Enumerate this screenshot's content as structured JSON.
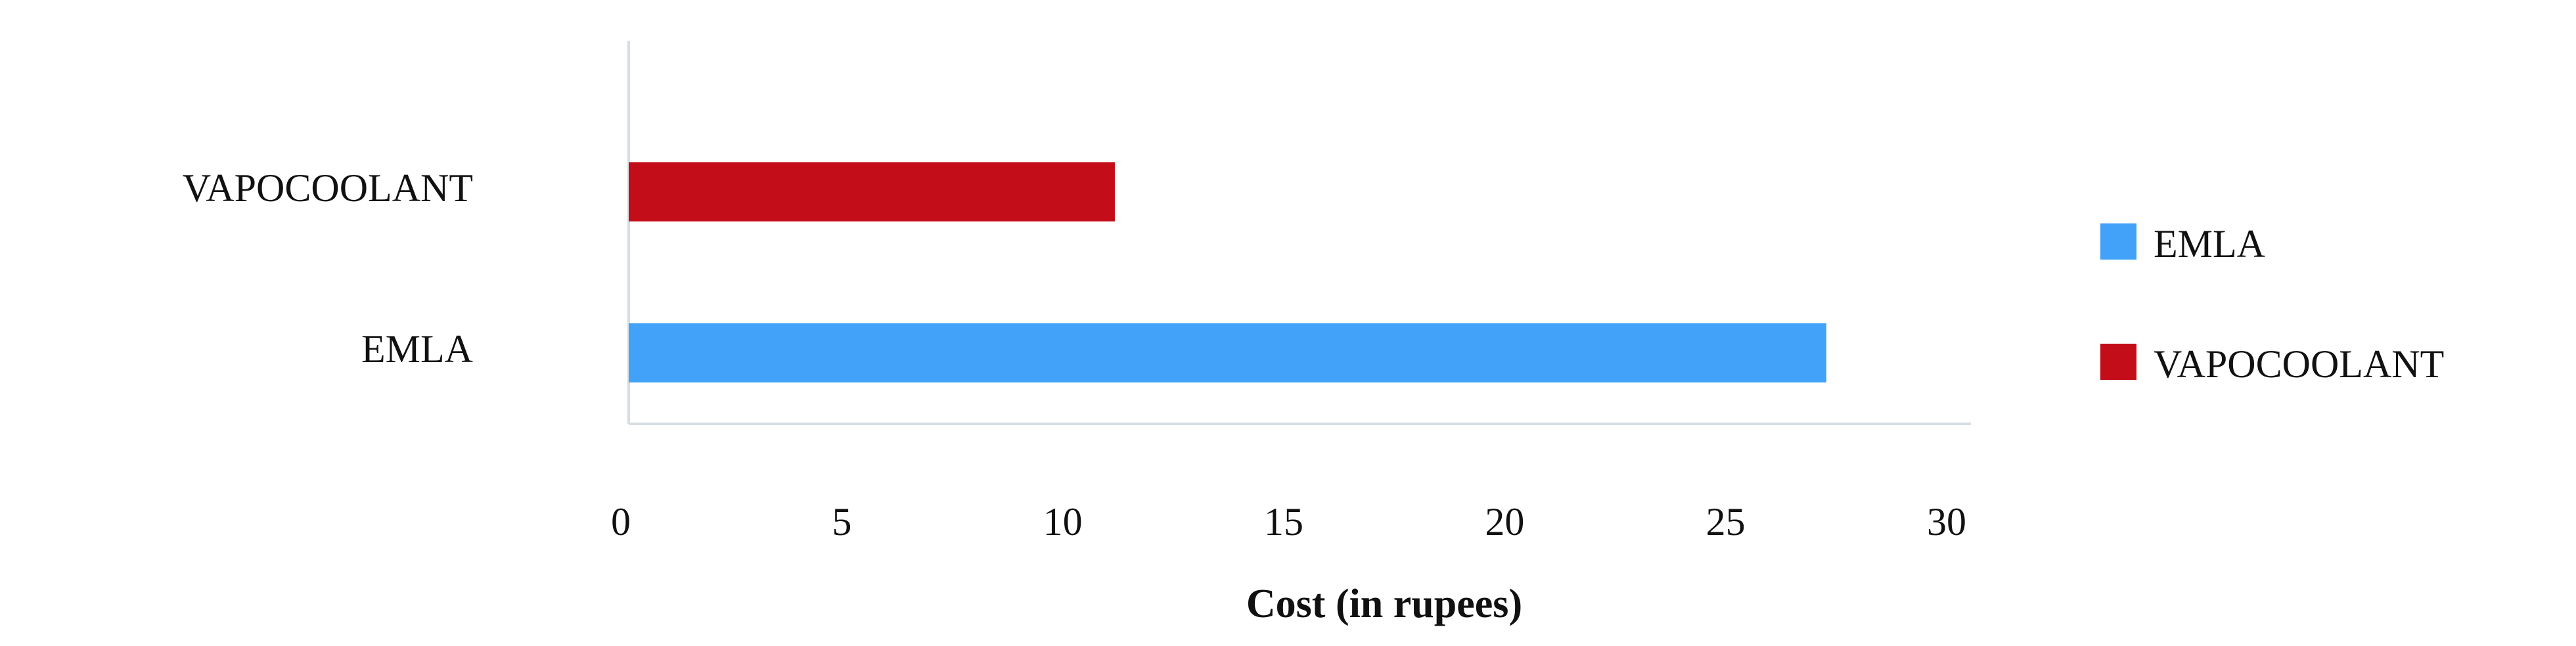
{
  "chart_data": {
    "type": "barh",
    "x_label": "Cost (in rupees)",
    "categories": [
      "EMLA",
      "VAPOCOOLANT"
    ],
    "values": [
      27.1,
      11.0
    ],
    "colors": [
      "#42a1f8",
      "#c30d18"
    ],
    "xlim": [
      0,
      30
    ],
    "xticks": [
      0,
      5,
      10,
      15,
      20,
      25,
      30
    ],
    "grid": false,
    "legend": "right"
  }
}
